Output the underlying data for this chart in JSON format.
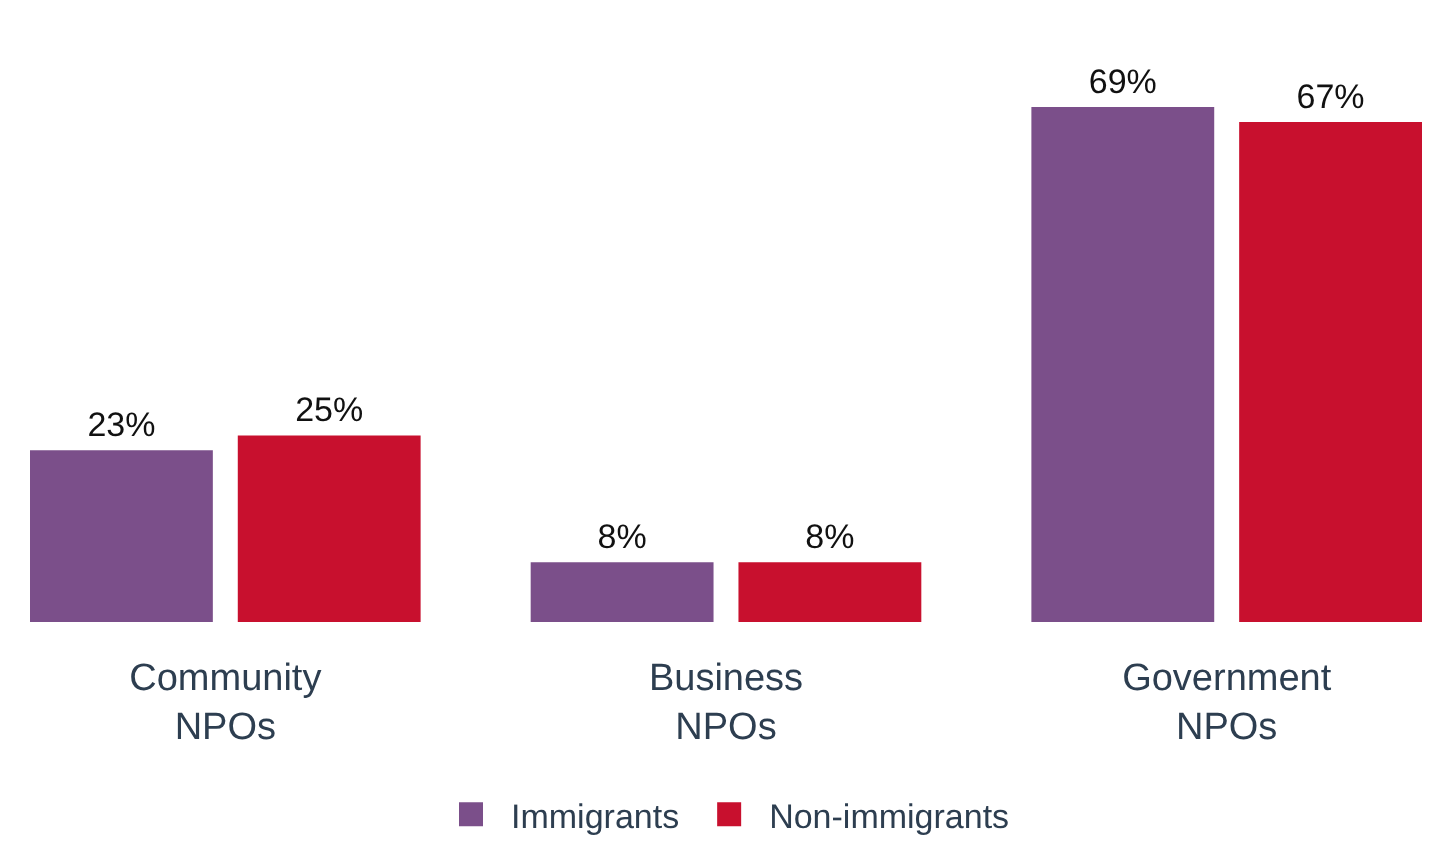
{
  "chart_data": {
    "type": "bar",
    "categories": [
      "Community NPOs",
      "Business NPOs",
      "Government NPOs"
    ],
    "series": [
      {
        "name": "Immigrants",
        "color": "#7b4f8a",
        "values": [
          23,
          8,
          69
        ],
        "value_labels": [
          "23%",
          "8%",
          "69%"
        ]
      },
      {
        "name": "Non-immigrants",
        "color": "#c8102e",
        "values": [
          25,
          8,
          67
        ],
        "value_labels": [
          "25%",
          "8%",
          "67%"
        ]
      }
    ],
    "legend": "bottom",
    "grid": false
  }
}
